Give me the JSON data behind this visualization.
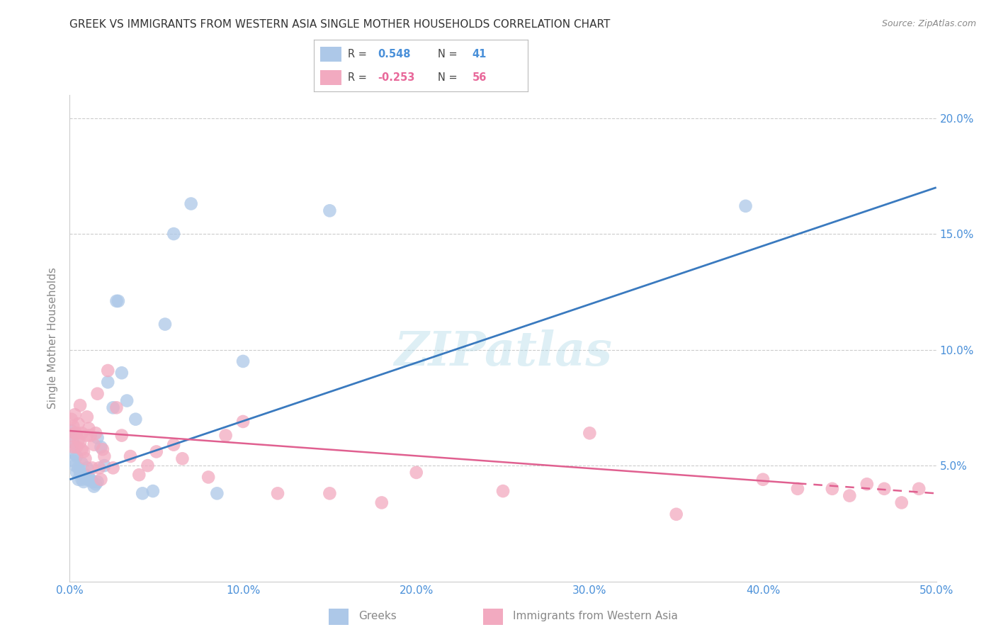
{
  "title": "GREEK VS IMMIGRANTS FROM WESTERN ASIA SINGLE MOTHER HOUSEHOLDS CORRELATION CHART",
  "source": "Source: ZipAtlas.com",
  "ylabel": "Single Mother Households",
  "xlabel_ticks": [
    "0.0%",
    "10.0%",
    "20.0%",
    "30.0%",
    "40.0%",
    "50.0%"
  ],
  "ylabel_ticks": [
    "5.0%",
    "10.0%",
    "15.0%",
    "20.0%"
  ],
  "xlim": [
    0.0,
    0.5
  ],
  "ylim": [
    0.0,
    0.21
  ],
  "watermark": "ZIPatlas",
  "blue_color": "#4a90d9",
  "pink_color": "#e8689a",
  "blue_line_color": "#3a7abf",
  "pink_line_color": "#e06090",
  "blue_scatter_color": "#adc8e8",
  "pink_scatter_color": "#f2aac0",
  "greeks_x": [
    0.001,
    0.002,
    0.002,
    0.003,
    0.003,
    0.004,
    0.004,
    0.005,
    0.005,
    0.006,
    0.007,
    0.007,
    0.008,
    0.009,
    0.01,
    0.01,
    0.011,
    0.012,
    0.013,
    0.014,
    0.015,
    0.016,
    0.016,
    0.018,
    0.02,
    0.022,
    0.025,
    0.027,
    0.028,
    0.03,
    0.033,
    0.038,
    0.042,
    0.048,
    0.055,
    0.06,
    0.07,
    0.085,
    0.1,
    0.15,
    0.39
  ],
  "greeks_y": [
    0.065,
    0.052,
    0.06,
    0.055,
    0.05,
    0.047,
    0.054,
    0.044,
    0.049,
    0.047,
    0.051,
    0.044,
    0.043,
    0.046,
    0.049,
    0.044,
    0.045,
    0.044,
    0.043,
    0.041,
    0.042,
    0.043,
    0.062,
    0.058,
    0.05,
    0.086,
    0.075,
    0.121,
    0.121,
    0.09,
    0.078,
    0.07,
    0.038,
    0.039,
    0.111,
    0.15,
    0.163,
    0.038,
    0.095,
    0.16,
    0.162
  ],
  "immigrants_x": [
    0.001,
    0.001,
    0.002,
    0.002,
    0.003,
    0.003,
    0.004,
    0.004,
    0.005,
    0.005,
    0.006,
    0.006,
    0.007,
    0.007,
    0.008,
    0.009,
    0.01,
    0.01,
    0.011,
    0.012,
    0.013,
    0.014,
    0.015,
    0.016,
    0.017,
    0.018,
    0.019,
    0.02,
    0.022,
    0.025,
    0.027,
    0.03,
    0.035,
    0.04,
    0.045,
    0.05,
    0.06,
    0.065,
    0.08,
    0.09,
    0.1,
    0.12,
    0.15,
    0.18,
    0.2,
    0.25,
    0.3,
    0.35,
    0.4,
    0.42,
    0.44,
    0.45,
    0.46,
    0.47,
    0.48,
    0.49
  ],
  "immigrants_y": [
    0.07,
    0.063,
    0.067,
    0.058,
    0.072,
    0.064,
    0.064,
    0.058,
    0.061,
    0.068,
    0.076,
    0.06,
    0.064,
    0.057,
    0.056,
    0.053,
    0.071,
    0.063,
    0.066,
    0.063,
    0.049,
    0.059,
    0.064,
    0.081,
    0.049,
    0.044,
    0.057,
    0.054,
    0.091,
    0.049,
    0.075,
    0.063,
    0.054,
    0.046,
    0.05,
    0.056,
    0.059,
    0.053,
    0.045,
    0.063,
    0.069,
    0.038,
    0.038,
    0.034,
    0.047,
    0.039,
    0.064,
    0.029,
    0.044,
    0.04,
    0.04,
    0.037,
    0.042,
    0.04,
    0.034,
    0.04
  ],
  "blue_line_x0": 0.0,
  "blue_line_y0": 0.044,
  "blue_line_x1": 0.5,
  "blue_line_y1": 0.17,
  "pink_line_x0": 0.0,
  "pink_line_y0": 0.065,
  "pink_line_x1": 0.5,
  "pink_line_y1": 0.038,
  "pink_line_dash_start": 0.42
}
